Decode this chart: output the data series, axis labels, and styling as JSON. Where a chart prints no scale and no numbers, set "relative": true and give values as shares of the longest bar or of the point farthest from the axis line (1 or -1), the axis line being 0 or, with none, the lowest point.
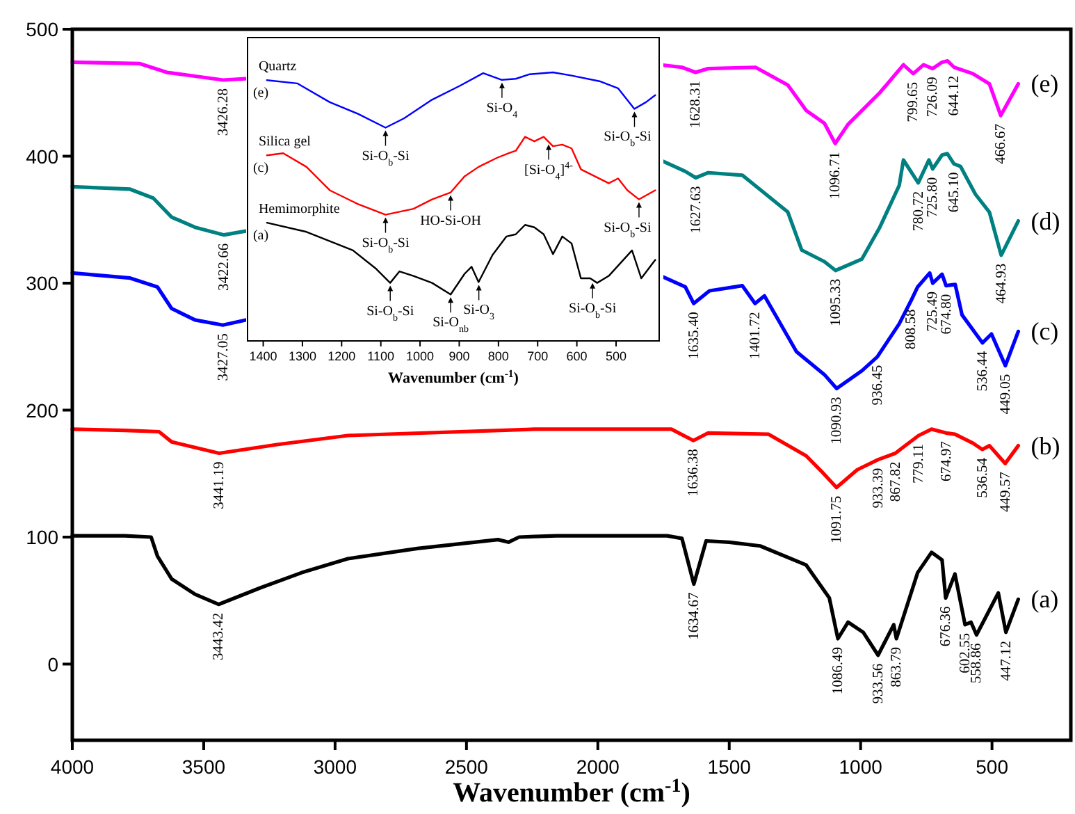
{
  "chart_data": [
    {
      "type": "line",
      "xlabel": "Wavenumber (cm$^{-1}$)",
      "xlim": [
        4000,
        200
      ],
      "xticks": [
        4000,
        3500,
        3000,
        2500,
        2000,
        1500,
        1000,
        500
      ],
      "ylim": [
        -60,
        500
      ],
      "yticks": [
        0,
        100,
        200,
        300,
        400,
        500
      ],
      "series": [
        {
          "name": "(a)",
          "color": "#000000",
          "x": [
            4000,
            3800,
            3700,
            3676,
            3622,
            3533,
            3443.42,
            3285,
            3127,
            2951,
            2687,
            2380,
            2340,
            2300,
            2157,
            1900,
            1736,
            1680,
            1634.67,
            1588,
            1500,
            1382,
            1207,
            1119,
            1086.49,
            1048,
            990,
            933.56,
            874,
            863.79,
            783,
            730,
            690,
            676.36,
            641,
            602.55,
            580,
            558.86,
            476,
            447.12,
            400
          ],
          "values": [
            101,
            101,
            100,
            85,
            67,
            55,
            47,
            60,
            72,
            83,
            91,
            98,
            96,
            100,
            101,
            101,
            101,
            99,
            63,
            97,
            96,
            93,
            78,
            52,
            20,
            33,
            25,
            7,
            31,
            20,
            72,
            88,
            82,
            52,
            71,
            31,
            33,
            23,
            56,
            25,
            51
          ]
        },
        {
          "name": "(b)",
          "color": "#ff0000",
          "x": [
            4000,
            3800,
            3670,
            3622,
            3441.19,
            3216,
            2951,
            2240,
            1900,
            1720,
            1636.38,
            1580,
            1350,
            1207,
            1150,
            1091.75,
            1013,
            933.39,
            867.82,
            837,
            779.11,
            730,
            674.97,
            641,
            573,
            536.54,
            510,
            449.57,
            400
          ],
          "values": [
            185,
            184,
            183,
            175,
            166,
            173,
            180,
            185,
            185,
            185,
            176,
            182,
            181,
            164,
            152,
            139,
            153,
            161,
            166,
            171,
            180,
            185,
            182,
            181,
            174,
            169,
            172,
            158,
            172
          ]
        },
        {
          "name": "(c)",
          "color": "#0000ff",
          "x": [
            4000,
            3780,
            3676,
            3622,
            3533,
            3427.05,
            3340,
            2500,
            1763,
            1667,
            1635.4,
            1575,
            1450,
            1401.72,
            1366,
            1244,
            1138,
            1090.93,
            995,
            936.45,
            853,
            808.58,
            783,
            737,
            725.49,
            690,
            674.8,
            640,
            614,
            536.44,
            502,
            449.05,
            400
          ],
          "values": [
            308,
            304,
            297,
            280,
            271,
            267,
            271,
            null,
            306,
            297,
            284,
            294,
            298,
            284,
            290,
            246,
            228,
            217,
            231,
            242,
            268,
            286,
            297,
            308,
            300,
            307,
            298,
            299,
            275,
            253,
            260,
            235,
            262
          ]
        },
        {
          "name": "(d)",
          "color": "#008080",
          "x": [
            4000,
            3780,
            3692,
            3622,
            3533,
            3422.66,
            3340,
            2500,
            1763,
            1667,
            1627.63,
            1580,
            1450,
            1384,
            1277,
            1224,
            1138,
            1095.33,
            995,
            927,
            853,
            837,
            780.72,
            740,
            725.8,
            690,
            670,
            645.1,
            620,
            563,
            510,
            464.93,
            400
          ],
          "values": [
            376,
            374,
            367,
            352,
            344,
            338,
            341,
            null,
            397,
            388,
            383,
            387,
            385,
            374,
            356,
            326,
            317,
            310,
            319,
            344,
            377,
            397,
            379,
            397,
            390,
            401,
            402,
            394,
            392,
            370,
            356,
            322,
            349
          ]
        },
        {
          "name": "(e)",
          "color": "#ff00ff",
          "x": [
            4000,
            3745,
            3640,
            3533,
            3426.28,
            3340,
            2500,
            1763,
            1680,
            1628.31,
            1580,
            1400,
            1277,
            1207,
            1138,
            1096.71,
            1048,
            927,
            837,
            799.65,
            760,
            726.09,
            690,
            669,
            644.12,
            573,
            510,
            466.67,
            400
          ],
          "values": [
            474,
            473,
            466,
            463,
            460,
            461,
            null,
            472,
            470,
            466,
            469,
            470,
            456,
            436,
            426,
            410,
            425,
            450,
            472,
            465,
            472,
            469,
            474,
            475,
            470,
            465,
            457,
            432,
            457
          ]
        }
      ],
      "annotations": [
        {
          "text": "3443.42",
          "x": 3443.42,
          "y": 47
        },
        {
          "text": "1634.67",
          "x": 1634.67,
          "y": 63
        },
        {
          "text": "1086.49",
          "x": 1086.49,
          "y": 20
        },
        {
          "text": "933.56",
          "x": 933.56,
          "y": 7
        },
        {
          "text": "863.79",
          "x": 863.79,
          "y": 20
        },
        {
          "text": "676.36",
          "x": 676.36,
          "y": 52
        },
        {
          "text": "602.55",
          "x": 602.55,
          "y": 31
        },
        {
          "text": "558.86",
          "x": 558.86,
          "y": 23
        },
        {
          "text": "447.12",
          "x": 447.12,
          "y": 25
        },
        {
          "text": "3441.19",
          "x": 3441.19,
          "y": 166
        },
        {
          "text": "1636.38",
          "x": 1636.38,
          "y": 176
        },
        {
          "text": "1091.75",
          "x": 1091.75,
          "y": 139
        },
        {
          "text": "933.39",
          "x": 933.39,
          "y": 161
        },
        {
          "text": "867.82",
          "x": 867.82,
          "y": 166
        },
        {
          "text": "779.11",
          "x": 779.11,
          "y": 180
        },
        {
          "text": "674.97",
          "x": 674.97,
          "y": 182
        },
        {
          "text": "536.54",
          "x": 536.54,
          "y": 169
        },
        {
          "text": "449.57",
          "x": 449.57,
          "y": 158
        },
        {
          "text": "3427.05",
          "x": 3427.05,
          "y": 267
        },
        {
          "text": "1635.40",
          "x": 1635.4,
          "y": 284
        },
        {
          "text": "1401.72",
          "x": 1401.72,
          "y": 284
        },
        {
          "text": "1090.93",
          "x": 1090.93,
          "y": 217
        },
        {
          "text": "936.45",
          "x": 936.45,
          "y": 242
        },
        {
          "text": "808.58",
          "x": 808.58,
          "y": 286
        },
        {
          "text": "725.49",
          "x": 725.49,
          "y": 300
        },
        {
          "text": "674.80",
          "x": 674.8,
          "y": 298
        },
        {
          "text": "536.44",
          "x": 536.44,
          "y": 253
        },
        {
          "text": "449.05",
          "x": 449.05,
          "y": 235
        },
        {
          "text": "3422.66",
          "x": 3422.66,
          "y": 338
        },
        {
          "text": "1627.63",
          "x": 1627.63,
          "y": 383
        },
        {
          "text": "1095.33",
          "x": 1095.33,
          "y": 310
        },
        {
          "text": "780.72",
          "x": 780.72,
          "y": 379
        },
        {
          "text": "725.80",
          "x": 725.8,
          "y": 390
        },
        {
          "text": "645.10",
          "x": 645.1,
          "y": 394
        },
        {
          "text": "464.93",
          "x": 464.93,
          "y": 322
        },
        {
          "text": "3426.28",
          "x": 3426.28,
          "y": 460
        },
        {
          "text": "1628.31",
          "x": 1628.31,
          "y": 466
        },
        {
          "text": "1096.71",
          "x": 1096.71,
          "y": 410
        },
        {
          "text": "799.65",
          "x": 799.65,
          "y": 465
        },
        {
          "text": "726.09",
          "x": 726.09,
          "y": 469
        },
        {
          "text": "644.12",
          "x": 644.12,
          "y": 470
        },
        {
          "text": "466.67",
          "x": 466.67,
          "y": 432
        }
      ]
    },
    {
      "type": "line",
      "relative": true,
      "xlabel": "Wavenumber (cm$^{-1}$)",
      "xlim": [
        1440,
        390
      ],
      "xticks": [
        1400,
        1300,
        1200,
        1100,
        1000,
        900,
        800,
        700,
        600,
        500
      ],
      "series": [
        {
          "name": "Quartz",
          "color": "#0000ff",
          "x": [
            1390.5,
            1313.4,
            1230.3,
            1159.2,
            1088,
            1040.5,
            969.4,
            898.2,
            838.9,
            791.4,
            755.8,
            720.2,
            661,
            613.5,
            542.3,
            495.1,
            453.3,
            423.7,
            400
          ],
          "values": [
            0.971,
            0.959,
            0.889,
            0.846,
            0.794,
            0.829,
            0.898,
            0.95,
            0.997,
            0.972,
            0.976,
            0.993,
            1,
            0.988,
            0.967,
            0.941,
            0.864,
            0.889,
            0.915
          ]
        },
        {
          "name": "Silica gel",
          "color": "#ff0000",
          "x": [
            1390.5,
            1349,
            1289.7,
            1230.3,
            1159.2,
            1088,
            1016.8,
            969.4,
            921.9,
            886.3,
            850.7,
            803.3,
            773.6,
            755.8,
            732.1,
            708.4,
            684.6,
            660.9,
            637.2,
            613.5,
            589.7,
            554.2,
            518.6,
            494.8,
            471.1,
            441.5,
            400
          ],
          "values": [
            0.691,
            0.699,
            0.648,
            0.561,
            0.51,
            0.47,
            0.492,
            0.527,
            0.553,
            0.613,
            0.648,
            0.682,
            0.699,
            0.708,
            0.76,
            0.743,
            0.76,
            0.725,
            0.731,
            0.717,
            0.639,
            0.613,
            0.587,
            0.605,
            0.561,
            0.527,
            0.561
          ]
        },
        {
          "name": "Hemimorphite",
          "color": "#000000",
          "x": [
            1390.5,
            1289.7,
            1171,
            1111.7,
            1076.2,
            1052.4,
            1016.8,
            969.4,
            921.9,
            886.3,
            868.5,
            850.7,
            815.1,
            779.5,
            755.8,
            732.1,
            708.4,
            684.6,
            660.9,
            637.2,
            613.5,
            589.7,
            566,
            548.2,
            518.6,
            459.3,
            435.6,
            400
          ],
          "values": [
            0.44,
            0.406,
            0.337,
            0.268,
            0.216,
            0.259,
            0.242,
            0.216,
            0.173,
            0.25,
            0.276,
            0.219,
            0.32,
            0.389,
            0.397,
            0.432,
            0.423,
            0.397,
            0.323,
            0.389,
            0.363,
            0.233,
            0.233,
            0.216,
            0.242,
            0.337,
            0.233,
            0.302
          ]
        }
      ],
      "annotations": [
        "(e)",
        {
          "text": "Si-O$_{b}$-Si",
          "x": 1088,
          "y": 0.794
        },
        {
          "text": "Si-O$_{4}$",
          "x": 791,
          "y": 0.972
        },
        {
          "text": "Si-O$_{b}$-Si",
          "x": 453,
          "y": 0.864
        },
        "(c)",
        {
          "text": "Si-O$_{b}$-Si",
          "x": 1088,
          "y": 0.47
        },
        {
          "text": "HO-Si-OH",
          "x": 922,
          "y": 0.553
        },
        {
          "text": "[Si-O$_{4}$]$^{4-}$",
          "x": 672,
          "y": 0.742
        },
        {
          "text": "Si-O$_{b}$-Si",
          "x": 441.5,
          "y": 0.527
        },
        "(a)",
        {
          "text": "Si-O$_{b}$-Si",
          "x": 1076,
          "y": 0.216
        },
        {
          "text": "Si-O$_{nb}$",
          "x": 922,
          "y": 0.173
        },
        {
          "text": "Si-O$_{3}$",
          "x": 850,
          "y": 0.219
        },
        {
          "text": "Si-O$_{b}$-Si",
          "x": 560,
          "y": 0.226
        }
      ]
    }
  ]
}
